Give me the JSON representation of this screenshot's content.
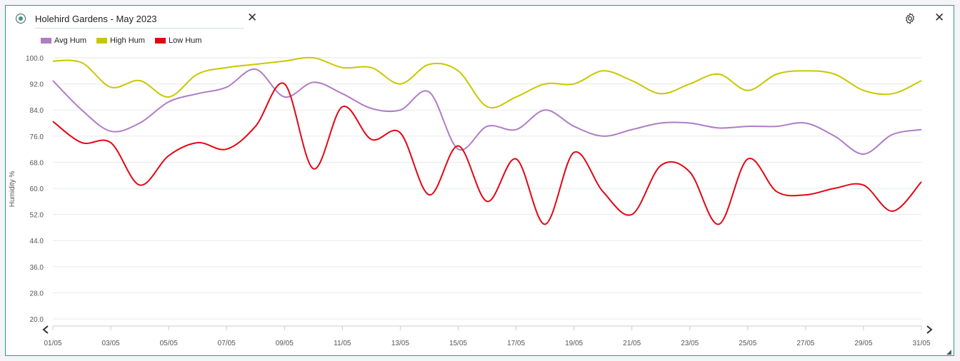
{
  "widget": {
    "title_value": "Holehird Gardens - May 2023",
    "close_icon": "close-icon",
    "settings_icon": "gear-icon",
    "resize_icon": "resize-grip-icon",
    "accent_color": "#2e9c84"
  },
  "chart_data": {
    "type": "line",
    "title": "",
    "xlabel": "",
    "ylabel": "Humidity %",
    "ylim": [
      20,
      100
    ],
    "yticks": [
      "20.0",
      "28.0",
      "36.0",
      "44.0",
      "52.0",
      "60.0",
      "68.0",
      "76.0",
      "84.0",
      "92.0",
      "100.0"
    ],
    "categories": [
      "01/05",
      "02/05",
      "03/05",
      "04/05",
      "05/05",
      "06/05",
      "07/05",
      "08/05",
      "09/05",
      "10/05",
      "11/05",
      "12/05",
      "13/05",
      "14/05",
      "15/05",
      "16/05",
      "17/05",
      "18/05",
      "19/05",
      "20/05",
      "21/05",
      "22/05",
      "23/05",
      "24/05",
      "25/05",
      "26/05",
      "27/05",
      "28/05",
      "29/05",
      "30/05",
      "31/05"
    ],
    "xtick_labels": [
      "01/05",
      "03/05",
      "05/05",
      "07/05",
      "09/05",
      "11/05",
      "13/05",
      "15/05",
      "17/05",
      "19/05",
      "21/05",
      "23/05",
      "25/05",
      "27/05",
      "29/05",
      "31/05"
    ],
    "grid": true,
    "legend_position": "top-left",
    "series": [
      {
        "name": "Avg Hum",
        "color": "#b07cc6",
        "values": [
          93,
          84,
          77.5,
          80,
          86.5,
          89,
          91,
          96.5,
          88,
          92.5,
          89,
          84.5,
          84,
          89.5,
          72,
          79,
          78,
          84,
          79,
          76,
          78,
          80,
          80,
          78.5,
          79,
          79,
          80,
          76,
          70.5,
          76.5,
          78
        ]
      },
      {
        "name": "High Hum",
        "color": "#c8c800",
        "values": [
          99,
          98.5,
          91,
          93,
          88,
          95,
          97,
          98,
          99,
          100,
          97,
          97,
          92,
          98,
          96,
          85,
          88,
          92,
          92,
          96,
          93,
          89,
          92,
          95,
          90,
          95,
          96,
          95,
          90,
          89,
          93
        ]
      },
      {
        "name": "Low Hum",
        "color": "#e30613",
        "values": [
          80.5,
          74,
          74,
          61,
          70,
          74,
          72,
          79,
          92,
          66,
          85,
          75,
          77,
          58,
          73,
          56,
          69,
          49,
          71,
          59,
          52,
          67,
          65,
          49,
          69,
          59,
          58,
          60,
          61,
          53,
          62
        ]
      }
    ]
  }
}
